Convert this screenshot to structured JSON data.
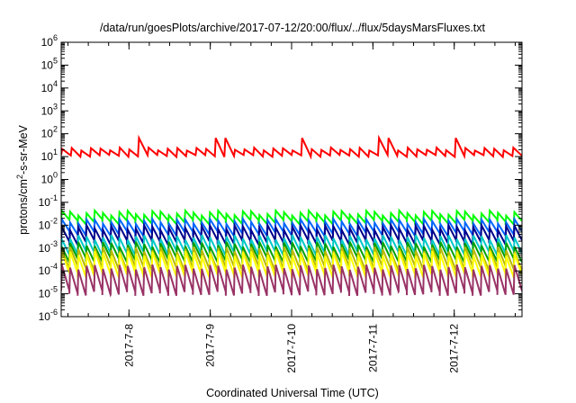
{
  "chart_data": {
    "type": "line",
    "title": "/data/run/goesPlots/archive/2017-07-12/20:00/flux/../flux/5daysMarsFluxes.txt",
    "xlabel": "Coordinated Universal Time (UTC)",
    "ylabel": "protons/cm2-s-sr-MeV",
    "ylabel_parts": {
      "pre": "protons/cm",
      "sup": "2",
      "post": "-s-sr-MeV"
    },
    "yscale": "log",
    "ylim": [
      1e-06,
      1000000.0
    ],
    "y_ticks": [
      {
        "base": "10",
        "exp": "6",
        "value": 1000000.0
      },
      {
        "base": "10",
        "exp": "5",
        "value": 100000.0
      },
      {
        "base": "10",
        "exp": "4",
        "value": 10000.0
      },
      {
        "base": "10",
        "exp": "3",
        "value": 1000.0
      },
      {
        "base": "10",
        "exp": "2",
        "value": 100.0
      },
      {
        "base": "10",
        "exp": "1",
        "value": 10.0
      },
      {
        "base": "10",
        "exp": "0",
        "value": 1.0
      },
      {
        "base": "10",
        "exp": "-1",
        "value": 0.1
      },
      {
        "base": "10",
        "exp": "-2",
        "value": 0.01
      },
      {
        "base": "10",
        "exp": "-3",
        "value": 0.001
      },
      {
        "base": "10",
        "exp": "-4",
        "value": 0.0001
      },
      {
        "base": "10",
        "exp": "-5",
        "value": 1e-05
      },
      {
        "base": "10",
        "exp": "-6",
        "value": 1e-06
      }
    ],
    "xlim": [
      "2017-07-07 04:00",
      "2017-07-12 20:00"
    ],
    "x_ticks": [
      "2017-7-8",
      "2017-7-9",
      "2017-7-10",
      "2017-7-11",
      "2017-7-12"
    ],
    "grid": false,
    "series": [
      {
        "color": "#ff0000",
        "base": 12,
        "peak": 65,
        "cycles": 48,
        "amp": 1.6
      },
      {
        "color": "#00ff00",
        "base": 0.012,
        "peak": 0.035,
        "cycles": 56,
        "amp": 2.5
      },
      {
        "color": "#0066ff",
        "base": 0.004,
        "peak": 0.015,
        "cycles": 56,
        "amp": 3.5
      },
      {
        "color": "#00008b",
        "base": 0.0015,
        "peak": 0.008,
        "cycles": 56,
        "amp": 4.5
      },
      {
        "color": "#00c8c8",
        "base": 0.0006,
        "peak": 0.003,
        "cycles": 56,
        "amp": 5
      },
      {
        "color": "#00a000",
        "base": 0.0003,
        "peak": 0.0015,
        "cycles": 56,
        "amp": 5
      },
      {
        "color": "#b8b800",
        "base": 0.00012,
        "peak": 0.0009,
        "cycles": 56,
        "amp": 7
      },
      {
        "color": "#ffff00",
        "base": 6e-05,
        "peak": 0.0006,
        "cycles": 56,
        "amp": 9
      },
      {
        "color": "#993366",
        "base": 1e-05,
        "peak": 0.00015,
        "cycles": 56,
        "amp": 14
      }
    ],
    "red_peaks_days": [
      1.0,
      2.0,
      3.0,
      4.0,
      4.9
    ]
  }
}
